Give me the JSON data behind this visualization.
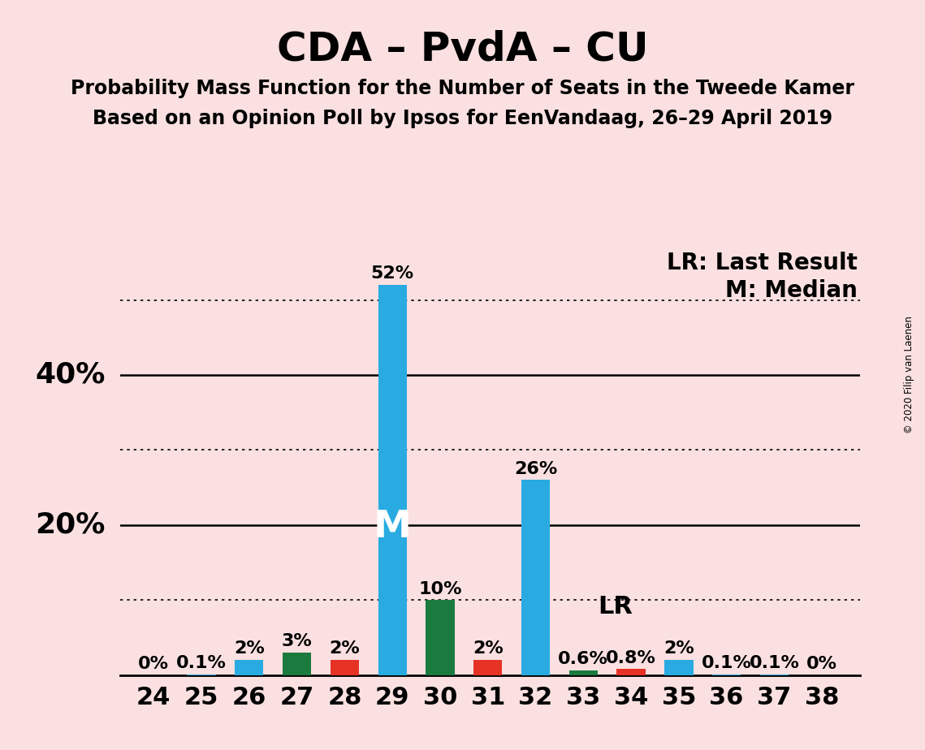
{
  "title": "CDA – PvdA – CU",
  "subtitle1": "Probability Mass Function for the Number of Seats in the Tweede Kamer",
  "subtitle2": "Based on an Opinion Poll by Ipsos for EenVandaag, 26–29 April 2019",
  "copyright": "© 2020 Filip van Laenen",
  "seats": [
    24,
    25,
    26,
    27,
    28,
    29,
    30,
    31,
    32,
    33,
    34,
    35,
    36,
    37,
    38
  ],
  "values": [
    0.0,
    0.1,
    2.0,
    3.0,
    2.0,
    52.0,
    10.0,
    2.0,
    26.0,
    0.6,
    0.8,
    2.0,
    0.1,
    0.1,
    0.0
  ],
  "labels": [
    "0%",
    "0.1%",
    "2%",
    "3%",
    "2%",
    "52%",
    "10%",
    "2%",
    "26%",
    "0.6%",
    "0.8%",
    "2%",
    "0.1%",
    "0.1%",
    "0%"
  ],
  "colors": [
    "#29ABE2",
    "#29ABE2",
    "#29ABE2",
    "#1B7A3E",
    "#E63225",
    "#29ABE2",
    "#1B7A3E",
    "#E63225",
    "#29ABE2",
    "#1B7A3E",
    "#E63225",
    "#29ABE2",
    "#29ABE2",
    "#29ABE2",
    "#29ABE2"
  ],
  "median_seat": 29,
  "lr_seat": 33,
  "median_label": "M",
  "lr_label": "LR",
  "legend_lr": "LR: Last Result",
  "legend_m": "M: Median",
  "background_color": "#FAE0E0",
  "bar_width": 0.6,
  "ylim": [
    0,
    57
  ],
  "dotted_lines": [
    10,
    30,
    50
  ],
  "solid_lines": [
    20,
    40
  ],
  "title_fontsize": 36,
  "subtitle_fontsize": 17,
  "axis_tick_fontsize": 22,
  "ylabel_fontsize": 26,
  "label_fontsize": 16,
  "annotation_fontsize": 22,
  "legend_fontsize": 20
}
